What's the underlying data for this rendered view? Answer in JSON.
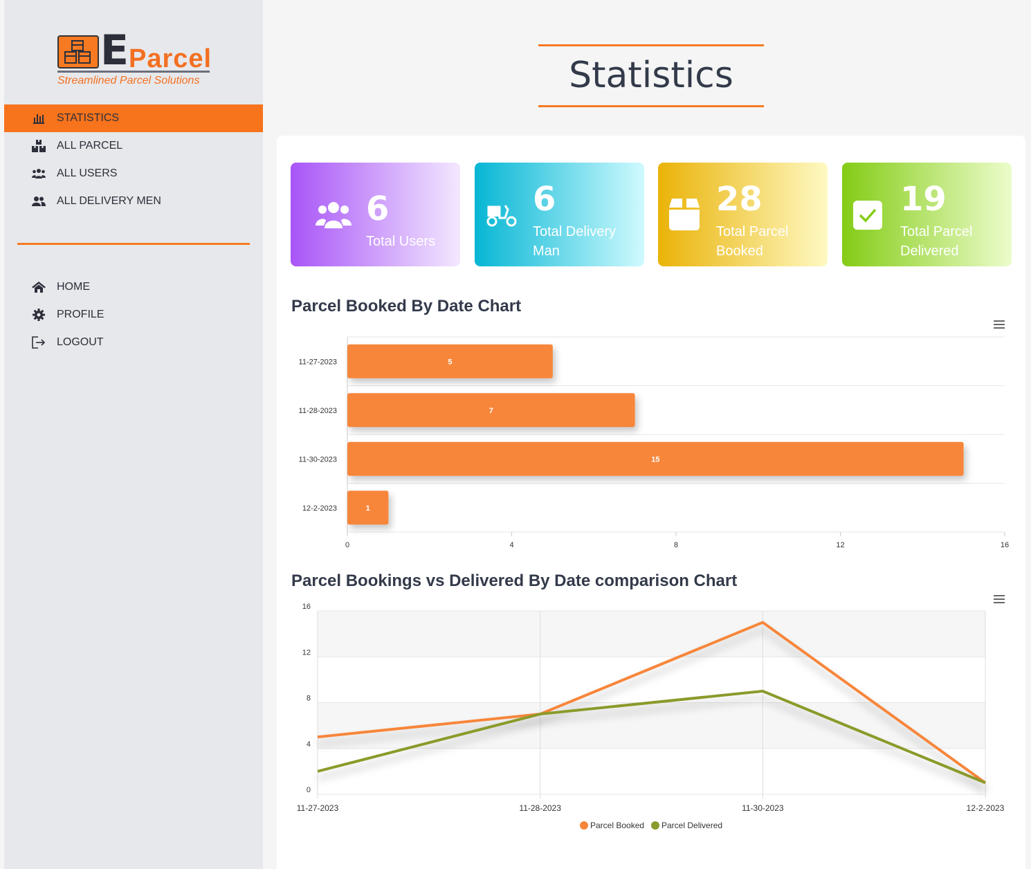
{
  "brand": {
    "letter": "E",
    "name": "Parcel",
    "tagline": "Streamlined Parcel Solutions"
  },
  "nav": {
    "primary": [
      {
        "label": "STATISTICS",
        "icon": "bar-chart-icon",
        "active": true
      },
      {
        "label": "ALL PARCEL",
        "icon": "boxes-icon",
        "active": false
      },
      {
        "label": "ALL USERS",
        "icon": "users-icon",
        "active": false
      },
      {
        "label": "ALL DELIVERY MEN",
        "icon": "user-friends-icon",
        "active": false
      }
    ],
    "secondary": [
      {
        "label": "HOME",
        "icon": "home-icon"
      },
      {
        "label": "PROFILE",
        "icon": "gear-icon"
      },
      {
        "label": "LOGOUT",
        "icon": "logout-icon"
      }
    ]
  },
  "page": {
    "title": "Statistics"
  },
  "cards": [
    {
      "value": "6",
      "label1": "Total Users",
      "label2": "",
      "icon": "users-icon",
      "gradient": [
        "#a855f7",
        "#f3e8ff"
      ]
    },
    {
      "value": "6",
      "label1": "Total Delivery",
      "label2": "Man",
      "icon": "scooter-icon",
      "gradient": [
        "#06b6d4",
        "#cffafe"
      ]
    },
    {
      "value": "28",
      "label1": "Total Parcel",
      "label2": "Booked",
      "icon": "box-icon",
      "gradient": [
        "#eab308",
        "#fef9c3"
      ]
    },
    {
      "value": "19",
      "label1": "Total Parcel",
      "label2": "Delivered",
      "icon": "check-square-icon",
      "gradient": [
        "#84cc16",
        "#ecfccb"
      ]
    }
  ],
  "sections": {
    "bar_title": "Parcel Booked By Date Chart",
    "line_title": "Parcel Bookings vs Delivered By Date comparison Chart"
  },
  "colors": {
    "accent": "#f77a22",
    "booked": "#f7863a",
    "delivered": "#8b9a2a"
  },
  "chart_data": [
    {
      "type": "bar",
      "orientation": "horizontal",
      "title": "Parcel Booked By Date Chart",
      "categories": [
        "11-27-2023",
        "11-28-2023",
        "11-30-2023",
        "12-2-2023"
      ],
      "values": [
        5,
        7,
        15,
        1
      ],
      "xlim": [
        0,
        16
      ],
      "xticks": [
        "0",
        "4",
        "8",
        "12",
        "16"
      ],
      "grid": true
    },
    {
      "type": "line",
      "title": "Parcel Bookings vs Delivered By Date comparison Chart",
      "x": [
        "11-27-2023",
        "11-28-2023",
        "11-30-2023",
        "12-2-2023"
      ],
      "series": [
        {
          "name": "Parcel Booked",
          "values": [
            5,
            7,
            15,
            1
          ]
        },
        {
          "name": "Parcel Delivered",
          "values": [
            2,
            7,
            9,
            1
          ]
        }
      ],
      "ylim": [
        0,
        16
      ],
      "yticks": [
        "0",
        "4",
        "8",
        "12",
        "16"
      ],
      "legend": "bottom-center",
      "grid": true
    }
  ]
}
